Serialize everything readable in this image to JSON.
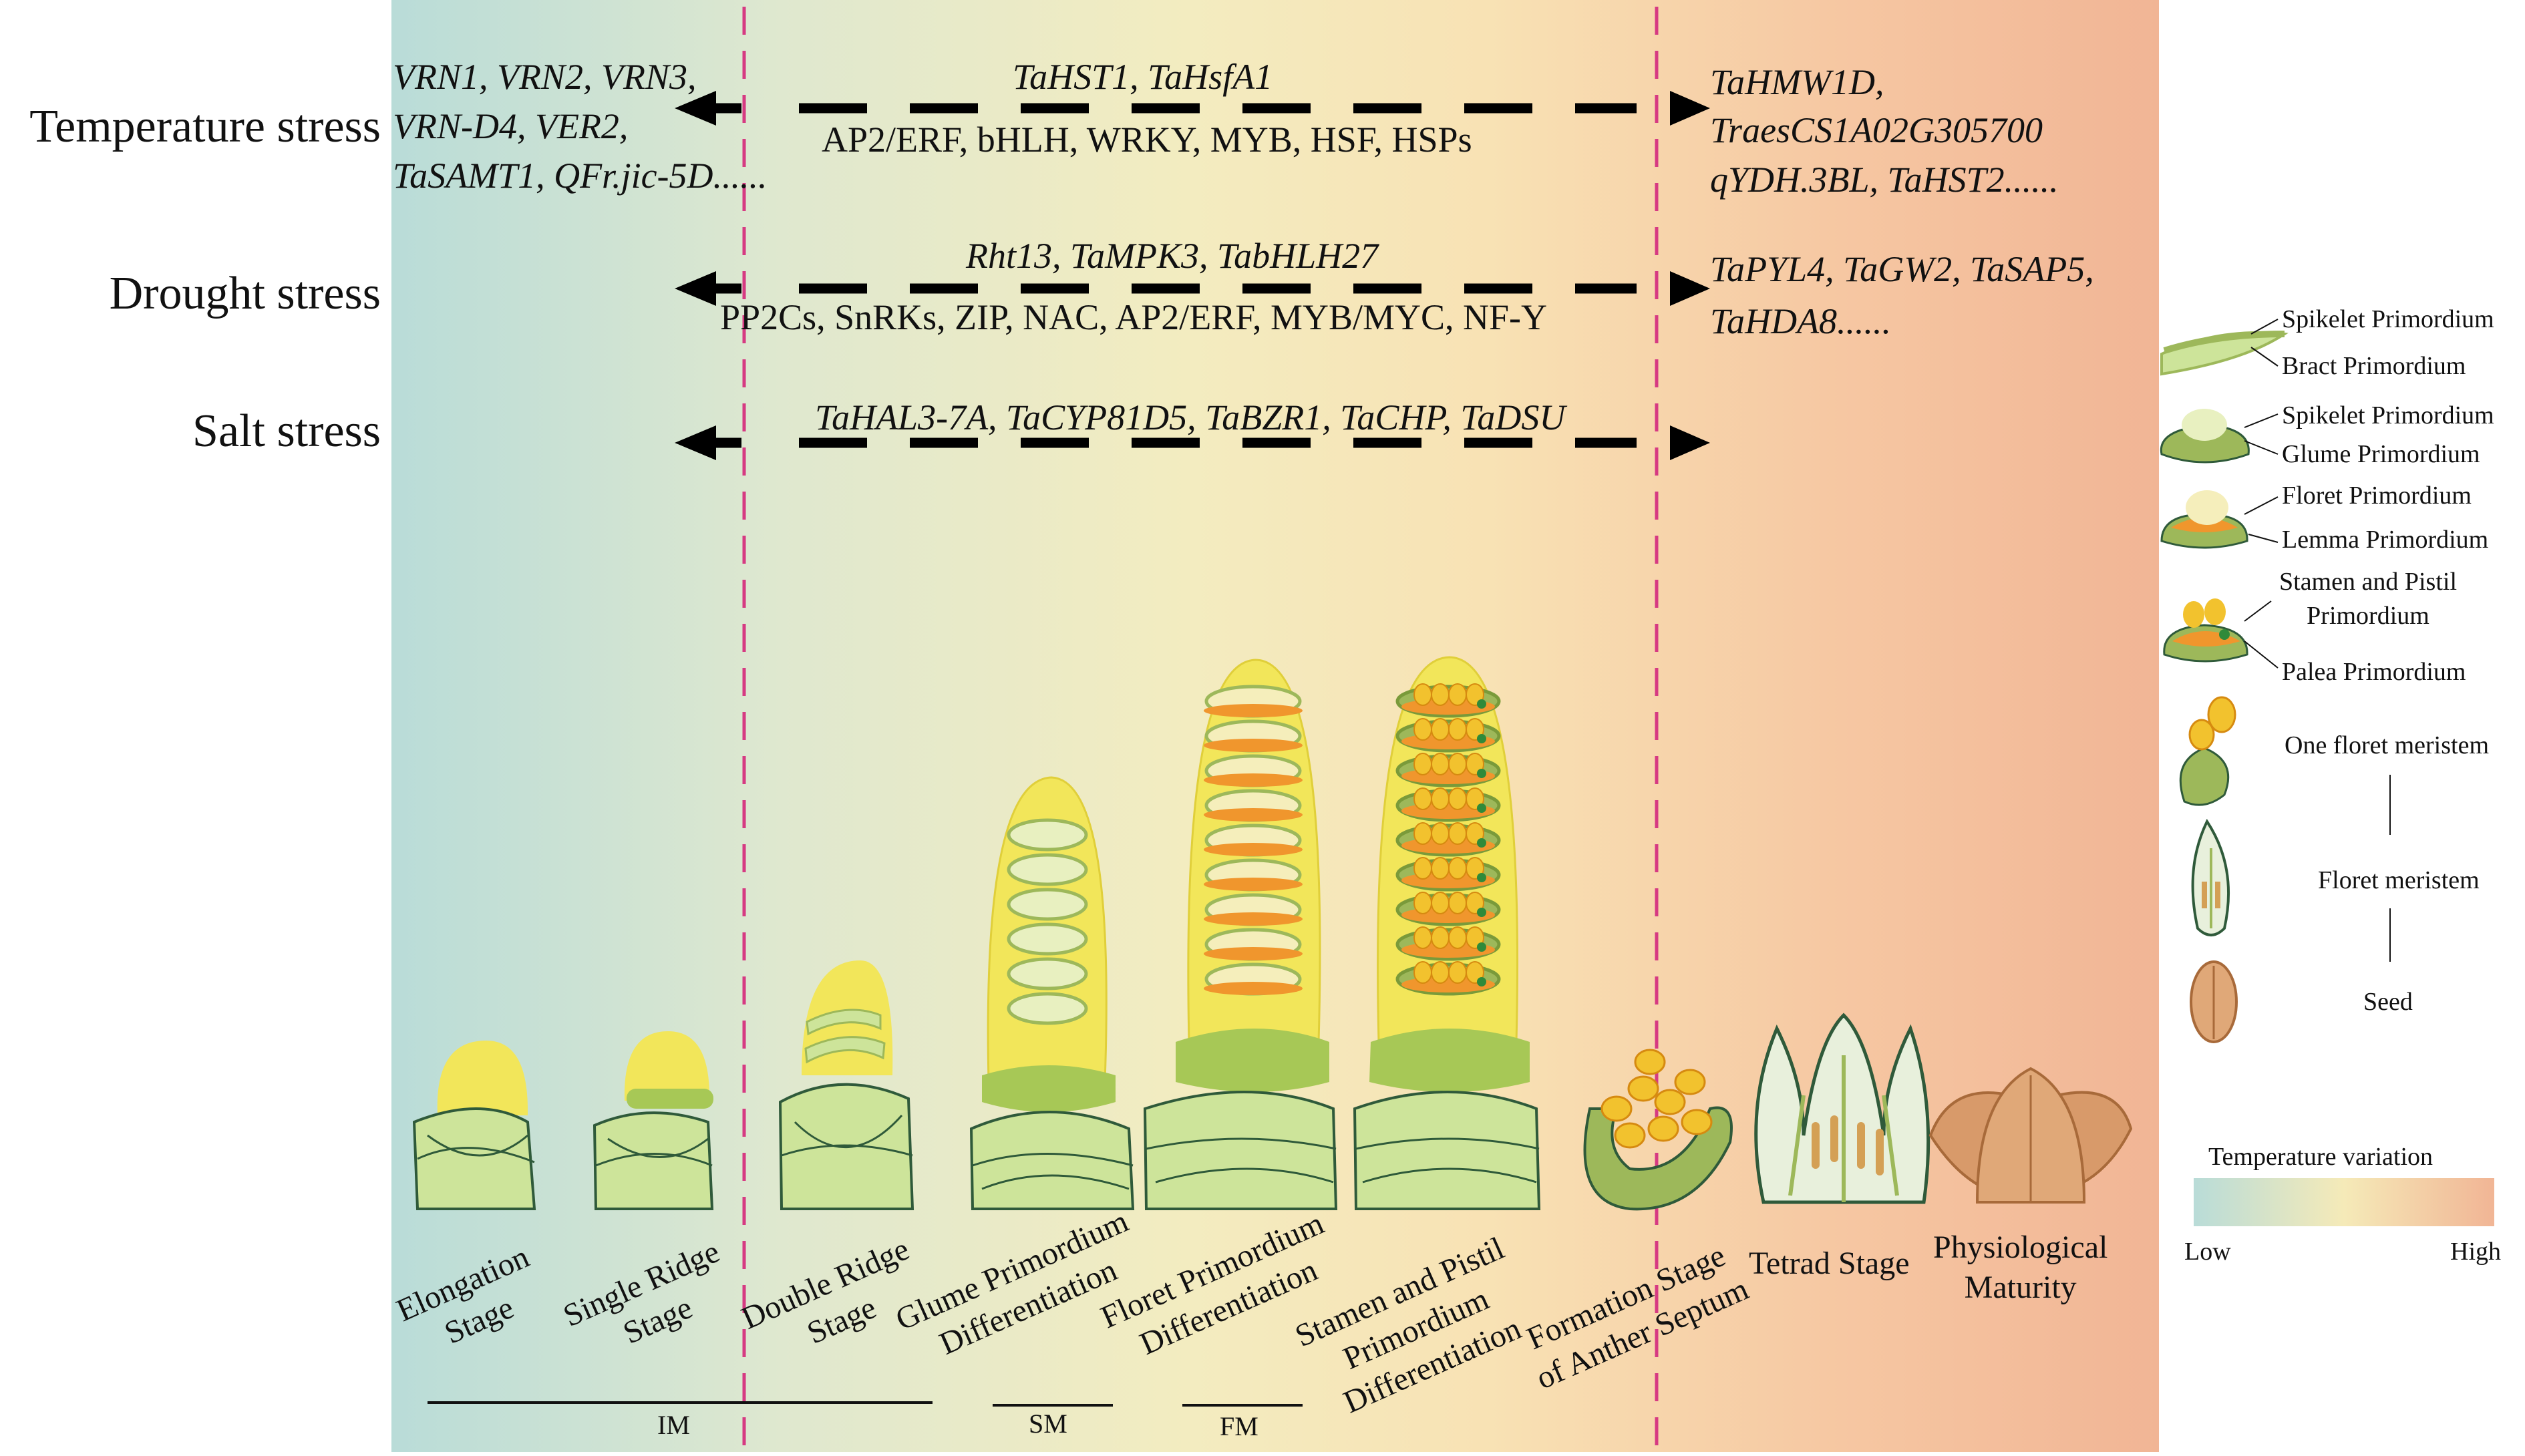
{
  "stresses": {
    "temperature": {
      "label": "Temperature stress",
      "early_genes": [
        "VRN1, VRN2, VRN3,",
        "VRN-D4, VER2,",
        "TaSAMT1, QFr.jic-5D......"
      ],
      "middle_genes": "TaHST1, TaHsfA1",
      "tfs": "AP2/ERF, bHLH, WRKY, MYB, HSF, HSPs",
      "late_genes": [
        "TaHMW1D,",
        "TraesCS1A02G305700",
        "qYDH.3BL, TaHST2......"
      ]
    },
    "drought": {
      "label": "Drought stress",
      "middle_genes": "Rht13, TaMPK3, TabHLH27",
      "tfs": "PP2Cs, SnRKs, ZIP, NAC, AP2/ERF, MYB/MYC, NF-Y",
      "late_genes": [
        "TaPYL4, TaGW2, TaSAP5,",
        "TaHDA8......"
      ]
    },
    "salt": {
      "label": "Salt stress",
      "middle_genes": "TaHAL3-7A, TaCYP81D5, TaBZR1, TaCHP, TaDSU"
    }
  },
  "stages": [
    "Elongation\nStage",
    "Single Ridge\nStage",
    "Double Ridge\nStage",
    "Glume Primordium\nDifferentiation",
    "Floret Primordium\nDifferentiation",
    "Stamen and Pistil\nPrimordium\nDifferentiation",
    "Formation Stage\nof Anther Septum",
    "Tetrad Stage",
    "Physiological\nMaturity"
  ],
  "meristems": {
    "im": "IM",
    "sm": "SM",
    "fm": "FM"
  },
  "legend": {
    "spikelet_primordium": "Spikelet Primordium",
    "bract_primordium": "Bract Primordium",
    "spikelet_primordium_2": "Spikelet Primordium",
    "glume_primordium": "Glume Primordium",
    "floret_primordium": "Floret Primordium",
    "lemma_primordium": "Lemma Primordium",
    "stamen_pistil_primordium": "Stamen and Pistil\nPrimordium",
    "palea_primordium": "Palea Primordium",
    "one_floret_meristem": "One floret meristem",
    "floret_meristem": "Floret meristem",
    "seed": "Seed"
  },
  "temperature_scale": {
    "title": "Temperature variation",
    "low": "Low",
    "high": "High"
  },
  "colors": {
    "divider": "#d63a82",
    "yellow": "#f2e65a",
    "green": "#cde49a",
    "dark_green": "#9db85a",
    "orange": "#f0962d"
  }
}
